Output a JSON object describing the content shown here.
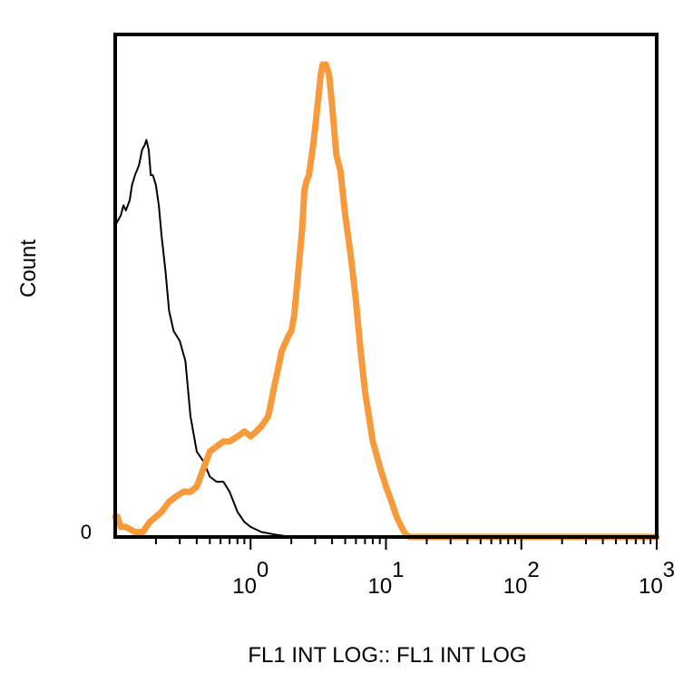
{
  "chart_data": {
    "type": "line",
    "title": "",
    "xlabel": "FL1 INT LOG:: FL1 INT LOG",
    "ylabel": "Count",
    "x_scale": "log",
    "xlim": [
      0.1,
      1000
    ],
    "ylim": [
      0,
      100
    ],
    "x_ticks": [
      {
        "value": 1,
        "base": "10",
        "exp": "0"
      },
      {
        "value": 10,
        "base": "10",
        "exp": "1"
      },
      {
        "value": 100,
        "base": "10",
        "exp": "2"
      },
      {
        "value": 1000,
        "base": "10",
        "exp": "3"
      }
    ],
    "y_ticks": [
      {
        "value": 0,
        "label": "0"
      }
    ],
    "grid": false,
    "series": [
      {
        "color": "#000000",
        "x": [
          0.1,
          0.11,
          0.115,
          0.12,
          0.128,
          0.133,
          0.14,
          0.15,
          0.158,
          0.165,
          0.17,
          0.177,
          0.183,
          0.19,
          0.2,
          0.21,
          0.22,
          0.235,
          0.25,
          0.27,
          0.3,
          0.33,
          0.36,
          0.4,
          0.45,
          0.5,
          0.56,
          0.63,
          0.7,
          0.8,
          0.9,
          1.0,
          1.2,
          1.5,
          2.0,
          5.0,
          20.0
        ],
        "y": [
          62,
          64,
          66,
          65,
          67,
          70,
          72,
          74,
          77,
          78,
          79,
          77,
          72,
          72,
          70,
          66,
          60,
          53,
          45,
          41,
          39,
          35,
          24,
          17,
          15,
          12,
          11,
          11,
          9,
          5,
          3,
          2,
          1,
          0.5,
          0,
          0,
          0
        ]
      },
      {
        "color": "#F79A3B",
        "x": [
          0.1,
          0.104,
          0.11,
          0.12,
          0.14,
          0.16,
          0.18,
          0.2,
          0.22,
          0.25,
          0.28,
          0.32,
          0.36,
          0.4,
          0.44,
          0.5,
          0.56,
          0.63,
          0.7,
          0.8,
          0.9,
          1.0,
          1.1,
          1.2,
          1.35,
          1.5,
          1.7,
          1.9,
          2.0,
          2.1,
          2.2,
          2.4,
          2.5,
          2.6,
          2.7,
          2.9,
          3.1,
          3.3,
          3.4,
          3.6,
          3.8,
          4.0,
          4.3,
          4.6,
          5.0,
          5.5,
          6.0,
          6.5,
          7.0,
          8.0,
          9.0,
          10.0,
          11.0,
          12.0,
          13.0,
          14.0,
          15.0,
          20.0,
          50.0,
          100.0,
          300.0,
          1000.0
        ],
        "y": [
          4,
          4,
          2,
          2,
          1,
          1,
          3,
          4,
          5,
          7,
          8,
          9,
          9,
          10,
          13,
          17,
          18,
          19,
          19,
          20,
          21,
          20,
          21,
          22,
          24,
          30,
          37,
          40,
          41,
          44,
          50,
          61,
          69,
          71,
          72,
          78,
          85,
          92,
          94,
          94,
          92,
          86,
          76,
          73,
          64,
          56,
          47,
          37,
          29,
          19,
          14,
          10,
          7,
          4,
          2,
          0.5,
          0,
          0,
          0,
          0,
          0,
          0
        ]
      }
    ]
  }
}
